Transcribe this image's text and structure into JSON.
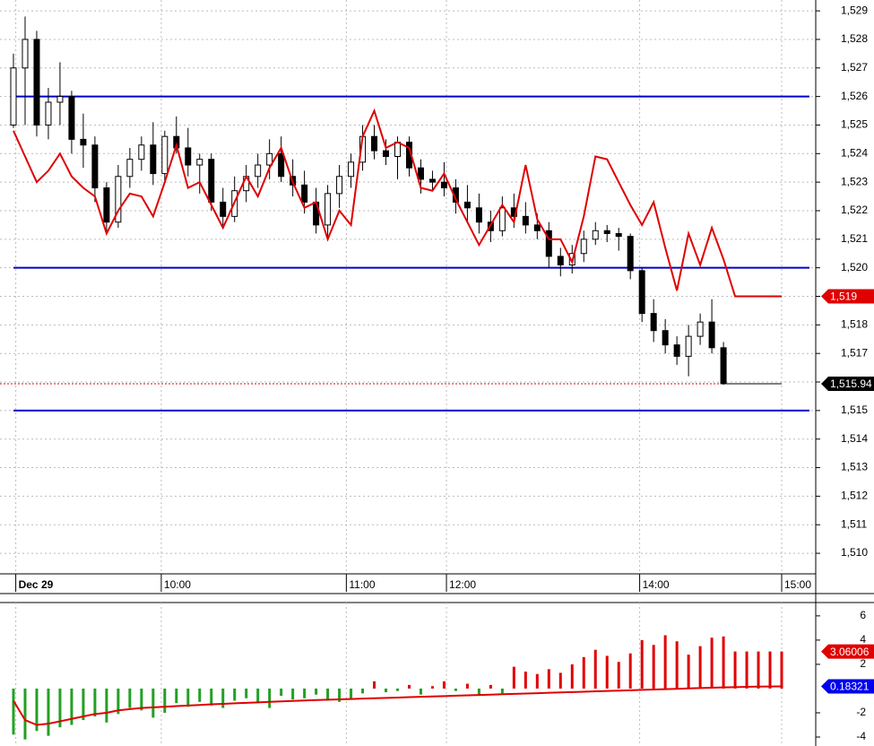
{
  "chart_data": [
    {
      "type": "candlestick",
      "xlim": [
        0,
        66
      ],
      "xticks": [
        {
          "value": 0.2,
          "label": "Dec 29"
        },
        {
          "value": 12.7,
          "label": "10:00"
        },
        {
          "value": 28.6,
          "label": "11:00"
        },
        {
          "value": 37.2,
          "label": "12:00"
        },
        {
          "value": 53.8,
          "label": "14:00"
        },
        {
          "value": 66,
          "label": "15:00"
        }
      ],
      "ylim": [
        1509.28,
        1529.38
      ],
      "yticks": [
        {
          "value": 1510,
          "label": "1,510"
        },
        {
          "value": 1511,
          "label": "1,511"
        },
        {
          "value": 1512,
          "label": "1,512"
        },
        {
          "value": 1513,
          "label": "1,513"
        },
        {
          "value": 1514,
          "label": "1,514"
        },
        {
          "value": 1515,
          "label": "1,515"
        },
        {
          "value": 1516,
          "label": "1,516"
        },
        {
          "value": 1517,
          "label": "1,517"
        },
        {
          "value": 1518,
          "label": "1,518"
        },
        {
          "value": 1519,
          "label": "1,519"
        },
        {
          "value": 1520,
          "label": "1,520"
        },
        {
          "value": 1521,
          "label": "1,521"
        },
        {
          "value": 1522,
          "label": "1,522"
        },
        {
          "value": 1523,
          "label": "1,523"
        },
        {
          "value": 1524,
          "label": "1,524"
        },
        {
          "value": 1525,
          "label": "1,525"
        },
        {
          "value": 1526,
          "label": "1,526"
        },
        {
          "value": 1527,
          "label": "1,527"
        },
        {
          "value": 1528,
          "label": "1,528"
        },
        {
          "value": 1529,
          "label": "1,529"
        }
      ],
      "grid": true,
      "open": [
        1525,
        1527,
        1528,
        1525,
        1525.8,
        1526,
        1524.5,
        1524.3,
        1522.8,
        1521.6,
        1523.2,
        1523.8,
        1524.3,
        1523.3,
        1524.6,
        1524.2,
        1523.6,
        1523.8,
        1522.3,
        1521.8,
        1522.7,
        1523.2,
        1523.6,
        1524,
        1523.2,
        1522.9,
        1522.3,
        1521.5,
        1522.6,
        1523.2,
        1523.7,
        1524.6,
        1524.1,
        1523.9,
        1524.4,
        1523.5,
        1523.1,
        1523,
        1522.8,
        1522.3,
        1522.1,
        1521.6,
        1521.3,
        1522.1,
        1521.8,
        1521.5,
        1521.3,
        1520.4,
        1520.1,
        1520.5,
        1521,
        1521.3,
        1521.2,
        1521.1,
        1519.9,
        1518.4,
        1517.8,
        1517.3,
        1516.9,
        1517.6,
        1518.1,
        1517.2
      ],
      "high": [
        1527.5,
        1528.8,
        1528.3,
        1526.3,
        1527.2,
        1526.2,
        1525.4,
        1524.6,
        1523,
        1523.6,
        1524.2,
        1524.6,
        1525.1,
        1524.8,
        1525.3,
        1524.9,
        1524,
        1524,
        1522.8,
        1523.2,
        1523.6,
        1524,
        1524.5,
        1524.6,
        1523.8,
        1523.4,
        1522.8,
        1522.9,
        1523.6,
        1524,
        1525,
        1525,
        1524.5,
        1524.6,
        1524.6,
        1523.8,
        1523.4,
        1523.7,
        1523.1,
        1522.9,
        1522.6,
        1522,
        1522.5,
        1522.6,
        1522.3,
        1521.9,
        1521.6,
        1520.7,
        1520.8,
        1521.3,
        1521.6,
        1521.5,
        1521.4,
        1521.2,
        1520,
        1518.9,
        1518.2,
        1517.6,
        1518,
        1518.4,
        1518.9,
        1517.4
      ],
      "low": [
        1524.9,
        1525,
        1524.6,
        1524.5,
        1525,
        1524,
        1523.5,
        1522.3,
        1521.2,
        1521.4,
        1522.8,
        1523.4,
        1522.9,
        1523,
        1524,
        1523.2,
        1522.6,
        1522,
        1521.4,
        1521.6,
        1522.3,
        1522.8,
        1523.1,
        1523,
        1522.5,
        1521.9,
        1521.2,
        1521,
        1522.1,
        1522.8,
        1523.4,
        1523.8,
        1523.6,
        1523.1,
        1523.2,
        1522.6,
        1522.7,
        1522.5,
        1521.9,
        1521.6,
        1521.2,
        1520.9,
        1521.1,
        1521.4,
        1521.2,
        1521,
        1520,
        1519.7,
        1519.8,
        1520.2,
        1520.8,
        1520.9,
        1520.6,
        1519.6,
        1518.1,
        1517.4,
        1517,
        1516.6,
        1516.2,
        1517.3,
        1517,
        1515.9
      ],
      "close": [
        1527,
        1528,
        1525,
        1525.8,
        1526,
        1524.5,
        1524.3,
        1522.8,
        1521.6,
        1523.2,
        1523.8,
        1524.3,
        1523.3,
        1524.6,
        1524.2,
        1523.6,
        1523.8,
        1522.3,
        1521.8,
        1522.7,
        1523.2,
        1523.6,
        1524,
        1523.2,
        1522.9,
        1522.3,
        1521.5,
        1522.6,
        1523.2,
        1523.7,
        1524.6,
        1524.1,
        1523.9,
        1524.4,
        1523.5,
        1523.1,
        1523,
        1522.8,
        1522.3,
        1522.1,
        1521.6,
        1521.3,
        1522.1,
        1521.8,
        1521.5,
        1521.3,
        1520.4,
        1520.1,
        1520.5,
        1521,
        1521.3,
        1521.2,
        1521.1,
        1519.9,
        1518.4,
        1517.8,
        1517.3,
        1516.9,
        1517.6,
        1518.1,
        1517.2,
        1515.94
      ],
      "series": [
        {
          "color": "#e00000",
          "values": [
            1524.8,
            1523.9,
            1523,
            1523.4,
            1524,
            1523.2,
            1522.8,
            1522.5,
            1521.2,
            1522,
            1522.6,
            1522.5,
            1521.8,
            1523,
            1524.3,
            1522.8,
            1523,
            1522.2,
            1521.4,
            1522.3,
            1523.2,
            1522.5,
            1523.5,
            1524.2,
            1523,
            1522.1,
            1522.3,
            1521,
            1522,
            1521.5,
            1524.6,
            1525.5,
            1524.2,
            1524.4,
            1524.2,
            1522.8,
            1522.7,
            1523.3,
            1522.4,
            1521.6,
            1520.8,
            1521.5,
            1522.2,
            1521.6,
            1523.6,
            1521.7,
            1521,
            1521,
            1520.2,
            1521.8,
            1523.9,
            1523.8,
            1523,
            1522.2,
            1521.5,
            1522.3,
            1520.7,
            1519.2,
            1521.2,
            1520.1,
            1521.4,
            1520.3,
            1519,
            1519,
            1519,
            1519,
            1519
          ]
        }
      ],
      "levels": {
        "color": "#0000cc",
        "values": [
          1526,
          1520,
          1515
        ]
      },
      "markers": [
        {
          "value": 1519,
          "label": "1,519",
          "color": "#e00000"
        },
        {
          "value": 1515.94,
          "label": "1,515.94",
          "color": "#000000"
        }
      ]
    },
    {
      "type": "oscillator",
      "xlim": [
        0,
        66
      ],
      "ylim": [
        -4.74,
        7.1
      ],
      "yticks": [
        6,
        4,
        2,
        -2,
        -4
      ],
      "up_color": "#e00000",
      "down_color": "#22a022",
      "values": [
        -3.8,
        -4.2,
        -3.5,
        -3.9,
        -3.2,
        -3,
        -2.6,
        -2.3,
        -2.8,
        -2.1,
        -1.6,
        -1.8,
        -2.4,
        -2,
        -1.2,
        -1.5,
        -1.1,
        -1.4,
        -1.6,
        -1,
        -0.8,
        -1.2,
        -1.6,
        -0.6,
        -0.9,
        -0.8,
        -0.5,
        -1.0,
        -1.1,
        -0.9,
        -0.4,
        0.6,
        -0.3,
        -0.2,
        0.3,
        -0.5,
        0.2,
        0.6,
        -0.2,
        0.4,
        -0.6,
        0.3,
        -0.4,
        1.8,
        1.4,
        1.2,
        1.6,
        1.3,
        2.0,
        2.6,
        3.2,
        2.7,
        2.2,
        2.9,
        4.0,
        3.6,
        4.4,
        3.9,
        2.8,
        3.5,
        4.2,
        4.3,
        3.06,
        3.06,
        3.06,
        3.06,
        3.06
      ],
      "series": [
        {
          "color": "#e00000",
          "values": [
            -1.0,
            -2.6,
            -3.0,
            -2.9,
            -2.7,
            -2.5,
            -2.3,
            -2.1,
            -2.0,
            -1.8,
            -1.7,
            -1.6,
            -1.55,
            -1.5,
            -1.45,
            -1.4,
            -1.35,
            -1.3,
            -1.26,
            -1.22,
            -1.18,
            -1.14,
            -1.1,
            -1.06,
            -1.02,
            -0.98,
            -0.95,
            -0.92,
            -0.89,
            -0.86,
            -0.83,
            -0.8,
            -0.77,
            -0.74,
            -0.71,
            -0.68,
            -0.65,
            -0.62,
            -0.59,
            -0.56,
            -0.53,
            -0.5,
            -0.47,
            -0.44,
            -0.41,
            -0.38,
            -0.35,
            -0.32,
            -0.29,
            -0.26,
            -0.23,
            -0.2,
            -0.17,
            -0.14,
            -0.11,
            -0.08,
            -0.05,
            -0.02,
            0.01,
            0.04,
            0.07,
            0.1,
            0.12,
            0.14,
            0.16,
            0.17,
            0.18
          ]
        }
      ],
      "markers": [
        {
          "value": 3.06006,
          "color": "#e00000"
        },
        {
          "value": 0.18321,
          "color": "#0000ee"
        }
      ]
    }
  ]
}
